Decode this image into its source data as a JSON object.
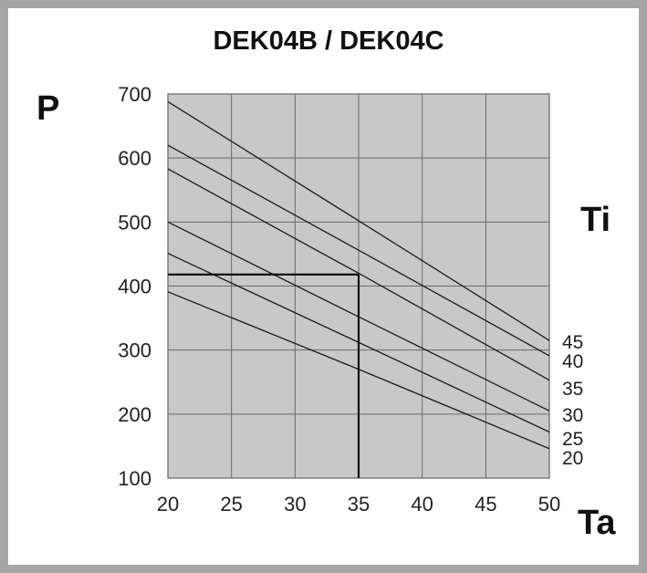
{
  "chart_data": {
    "type": "line",
    "title": "DEK04B / DEK04C",
    "ylabel": "P",
    "xlabel": "Ta",
    "legend_title": "Ti",
    "xlim": [
      20,
      50
    ],
    "ylim": [
      100,
      700
    ],
    "xticks": [
      "20",
      "25",
      "30",
      "35",
      "40",
      "45",
      "50"
    ],
    "yticks": [
      "100",
      "200",
      "300",
      "400",
      "500",
      "600",
      "700"
    ],
    "grid": true,
    "series": [
      {
        "name": "45",
        "x": [
          20,
          35,
          50
        ],
        "values": [
          688,
          502,
          315
        ]
      },
      {
        "name": "40",
        "x": [
          20,
          35,
          50
        ],
        "values": [
          620,
          456,
          291
        ]
      },
      {
        "name": "35",
        "x": [
          20,
          35,
          50
        ],
        "values": [
          583,
          420,
          253
        ]
      },
      {
        "name": "30",
        "x": [
          20,
          35,
          50
        ],
        "values": [
          500,
          352,
          205
        ]
      },
      {
        "name": "25",
        "x": [
          20,
          35,
          50
        ],
        "values": [
          451,
          312,
          172
        ]
      },
      {
        "name": "20",
        "x": [
          20,
          35,
          50
        ],
        "values": [
          391,
          270,
          146
        ]
      }
    ],
    "reference": {
      "x": 35,
      "y": 418
    }
  }
}
